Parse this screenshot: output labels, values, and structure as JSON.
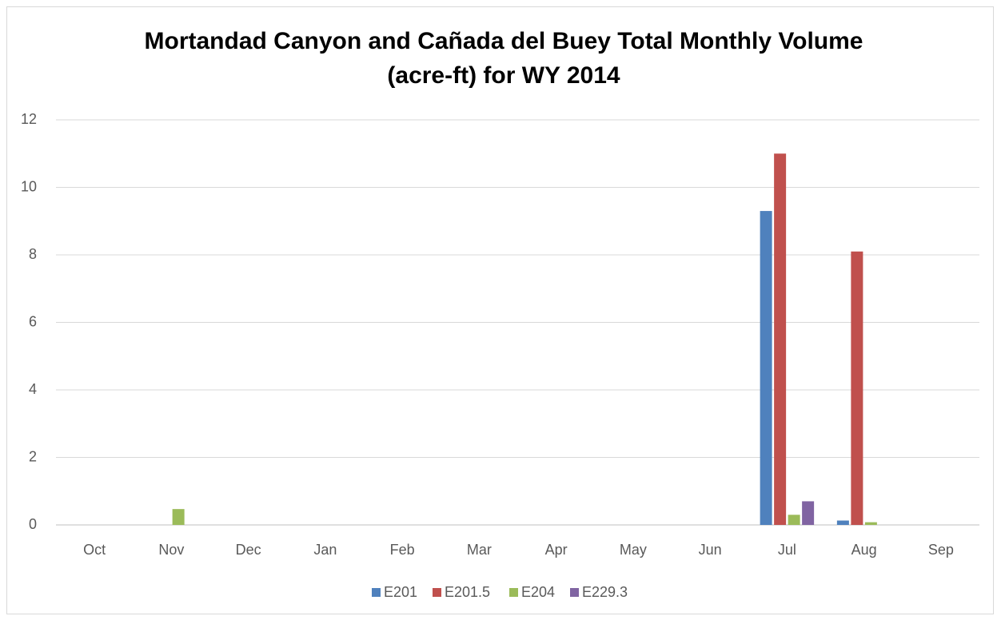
{
  "chart_data": {
    "type": "bar",
    "title": "Mortandad Canyon and Cañada del Buey Total Monthly Volume (acre-ft) for WY 2014",
    "categories": [
      "Oct",
      "Nov",
      "Dec",
      "Jan",
      "Feb",
      "Mar",
      "Apr",
      "May",
      "Jun",
      "Jul",
      "Aug",
      "Sep"
    ],
    "series": [
      {
        "name": "E201",
        "color": "#4f81bd",
        "values": [
          0,
          0,
          0,
          0,
          0,
          0,
          0,
          0,
          0,
          9.3,
          0.13,
          0
        ]
      },
      {
        "name": "E201.5",
        "color": "#c0504d",
        "values": [
          0,
          0,
          0,
          0,
          0,
          0,
          0,
          0,
          0,
          11.0,
          8.1,
          0
        ]
      },
      {
        "name": "E204",
        "color": "#9bbb59",
        "values": [
          0,
          0.47,
          0,
          0,
          0,
          0,
          0,
          0,
          0,
          0.3,
          0.08,
          0
        ]
      },
      {
        "name": "E229.3",
        "color": "#8064a2",
        "values": [
          0,
          0,
          0,
          0,
          0,
          0,
          0,
          0,
          0,
          0.7,
          0,
          0
        ]
      }
    ],
    "ylim": [
      0,
      12
    ],
    "yticks": [
      0,
      2,
      4,
      6,
      8,
      10,
      12
    ],
    "grid": true,
    "legend": "bottom"
  }
}
